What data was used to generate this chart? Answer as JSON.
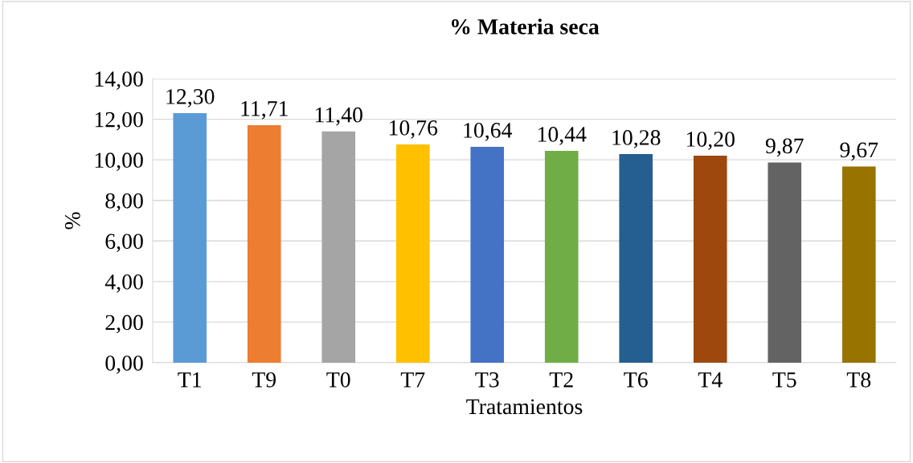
{
  "chart_data": {
    "type": "bar",
    "title": "% Materia seca",
    "xlabel": "Tratamientos",
    "ylabel": "%",
    "categories": [
      "T1",
      "T9",
      "T0",
      "T7",
      "T3",
      "T2",
      "T6",
      "T4",
      "T5",
      "T8"
    ],
    "values": [
      12.3,
      11.71,
      11.4,
      10.76,
      10.64,
      10.44,
      10.28,
      10.2,
      9.87,
      9.67
    ],
    "value_labels": [
      "12,30",
      "11,71",
      "11,40",
      "10,76",
      "10,64",
      "10,44",
      "10,28",
      "10,20",
      "9,87",
      "9,67"
    ],
    "colors": [
      "#5b9bd5",
      "#ed7d31",
      "#a5a5a5",
      "#ffc000",
      "#4472c4",
      "#70ad47",
      "#255e91",
      "#9e480e",
      "#636363",
      "#997300"
    ],
    "ylim": [
      0,
      14
    ],
    "yticks": [
      {
        "value": 0,
        "label": "0,00"
      },
      {
        "value": 2,
        "label": "2,00"
      },
      {
        "value": 4,
        "label": "4,00"
      },
      {
        "value": 6,
        "label": "6,00"
      },
      {
        "value": 8,
        "label": "8,00"
      },
      {
        "value": 10,
        "label": "10,00"
      },
      {
        "value": 12,
        "label": "12,00"
      },
      {
        "value": 14,
        "label": "14,00"
      }
    ],
    "grid": "y",
    "legend": false
  }
}
